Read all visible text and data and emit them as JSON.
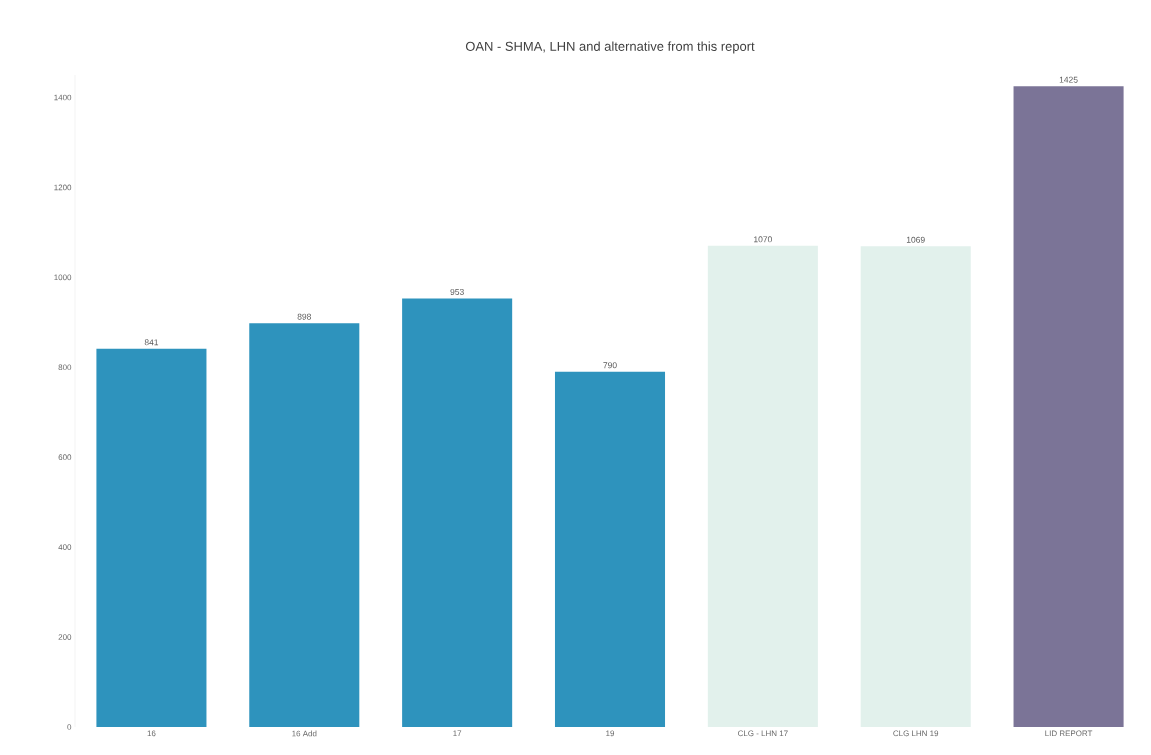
{
  "chart_data": {
    "type": "bar",
    "title": "OAN - SHMA, LHN and alternative from this report",
    "categories": [
      "16",
      "16 Add",
      "17",
      "19",
      "CLG - LHN 17",
      "CLG LHN 19",
      "LID REPORT"
    ],
    "values": [
      841,
      898,
      953,
      790,
      1070,
      1069,
      1425
    ],
    "colors": [
      "#2e93bd",
      "#2e93bd",
      "#2e93bd",
      "#2e93bd",
      "#e2f1ec",
      "#e2f1ec",
      "#7b7497"
    ],
    "ylim": [
      0,
      1450
    ],
    "yticks": [
      0,
      200,
      400,
      600,
      800,
      1000,
      1200,
      1400
    ],
    "data_labels": true,
    "grid": false
  }
}
